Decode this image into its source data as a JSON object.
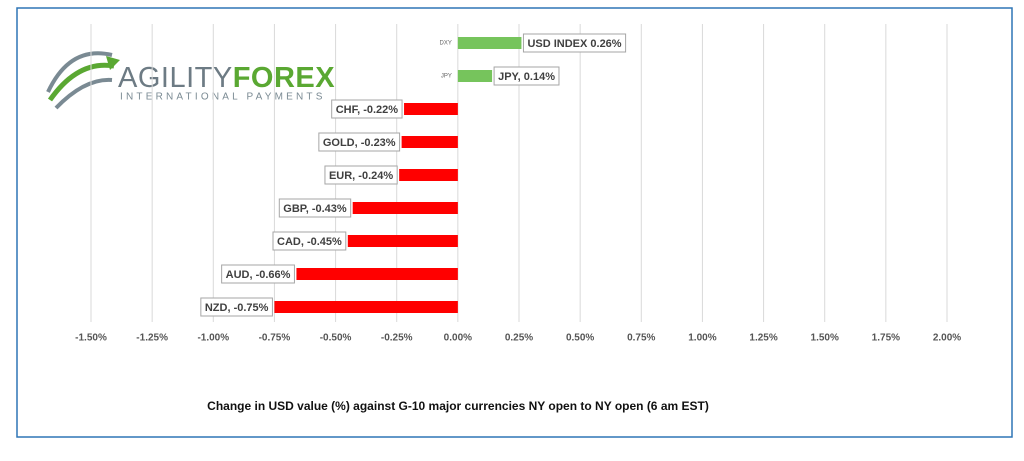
{
  "logo": {
    "name_part1": "AGILITY",
    "name_part2": "FOREX",
    "tagline": "INTERNATIONAL PAYMENTS"
  },
  "chart_data": {
    "type": "barh",
    "x_label": "Change in  USD value (%)  against  G-10 major currencies  NY open to  NY open  (6 am EST)",
    "categories": [
      "DXY",
      "JPY",
      null,
      null,
      null,
      null,
      null,
      null,
      null
    ],
    "values": [
      0.26,
      0.14,
      -0.22,
      -0.23,
      -0.24,
      -0.43,
      -0.45,
      -0.66,
      -0.75
    ],
    "value_labels": [
      "USD INDEX 0.26%",
      "JPY, 0.14%",
      "CHF, -0.22%",
      "GOLD, -0.23%",
      "EUR, -0.24%",
      "GBP, -0.43%",
      "CAD, -0.45%",
      "AUD, -0.66%",
      "NZD, -0.75%"
    ],
    "colors": [
      "#76c45c",
      "#76c45c",
      "#ff0000",
      "#ff0000",
      "#ff0000",
      "#ff0000",
      "#ff0000",
      "#ff0000",
      "#ff0000"
    ],
    "xlim": [
      -1.5,
      2.0
    ],
    "xticks": [
      {
        "value": -1.5,
        "label": "-1.50%"
      },
      {
        "value": -1.25,
        "label": "-1.25%"
      },
      {
        "value": -1.0,
        "label": "-1.00%"
      },
      {
        "value": -0.75,
        "label": "-0.75%"
      },
      {
        "value": -0.5,
        "label": "-0.50%"
      },
      {
        "value": -0.25,
        "label": "-0.25%"
      },
      {
        "value": 0,
        "label": "0.00%"
      },
      {
        "value": 0.25,
        "label": "0.25%"
      },
      {
        "value": 0.5,
        "label": "0.50%"
      },
      {
        "value": 0.75,
        "label": "0.75%"
      },
      {
        "value": 1.0,
        "label": "1.00%"
      },
      {
        "value": 1.25,
        "label": "1.25%"
      },
      {
        "value": 1.5,
        "label": "1.50%"
      },
      {
        "value": 1.75,
        "label": "1.75%"
      },
      {
        "value": 2.0,
        "label": "2.00%"
      }
    ],
    "grid": true
  }
}
